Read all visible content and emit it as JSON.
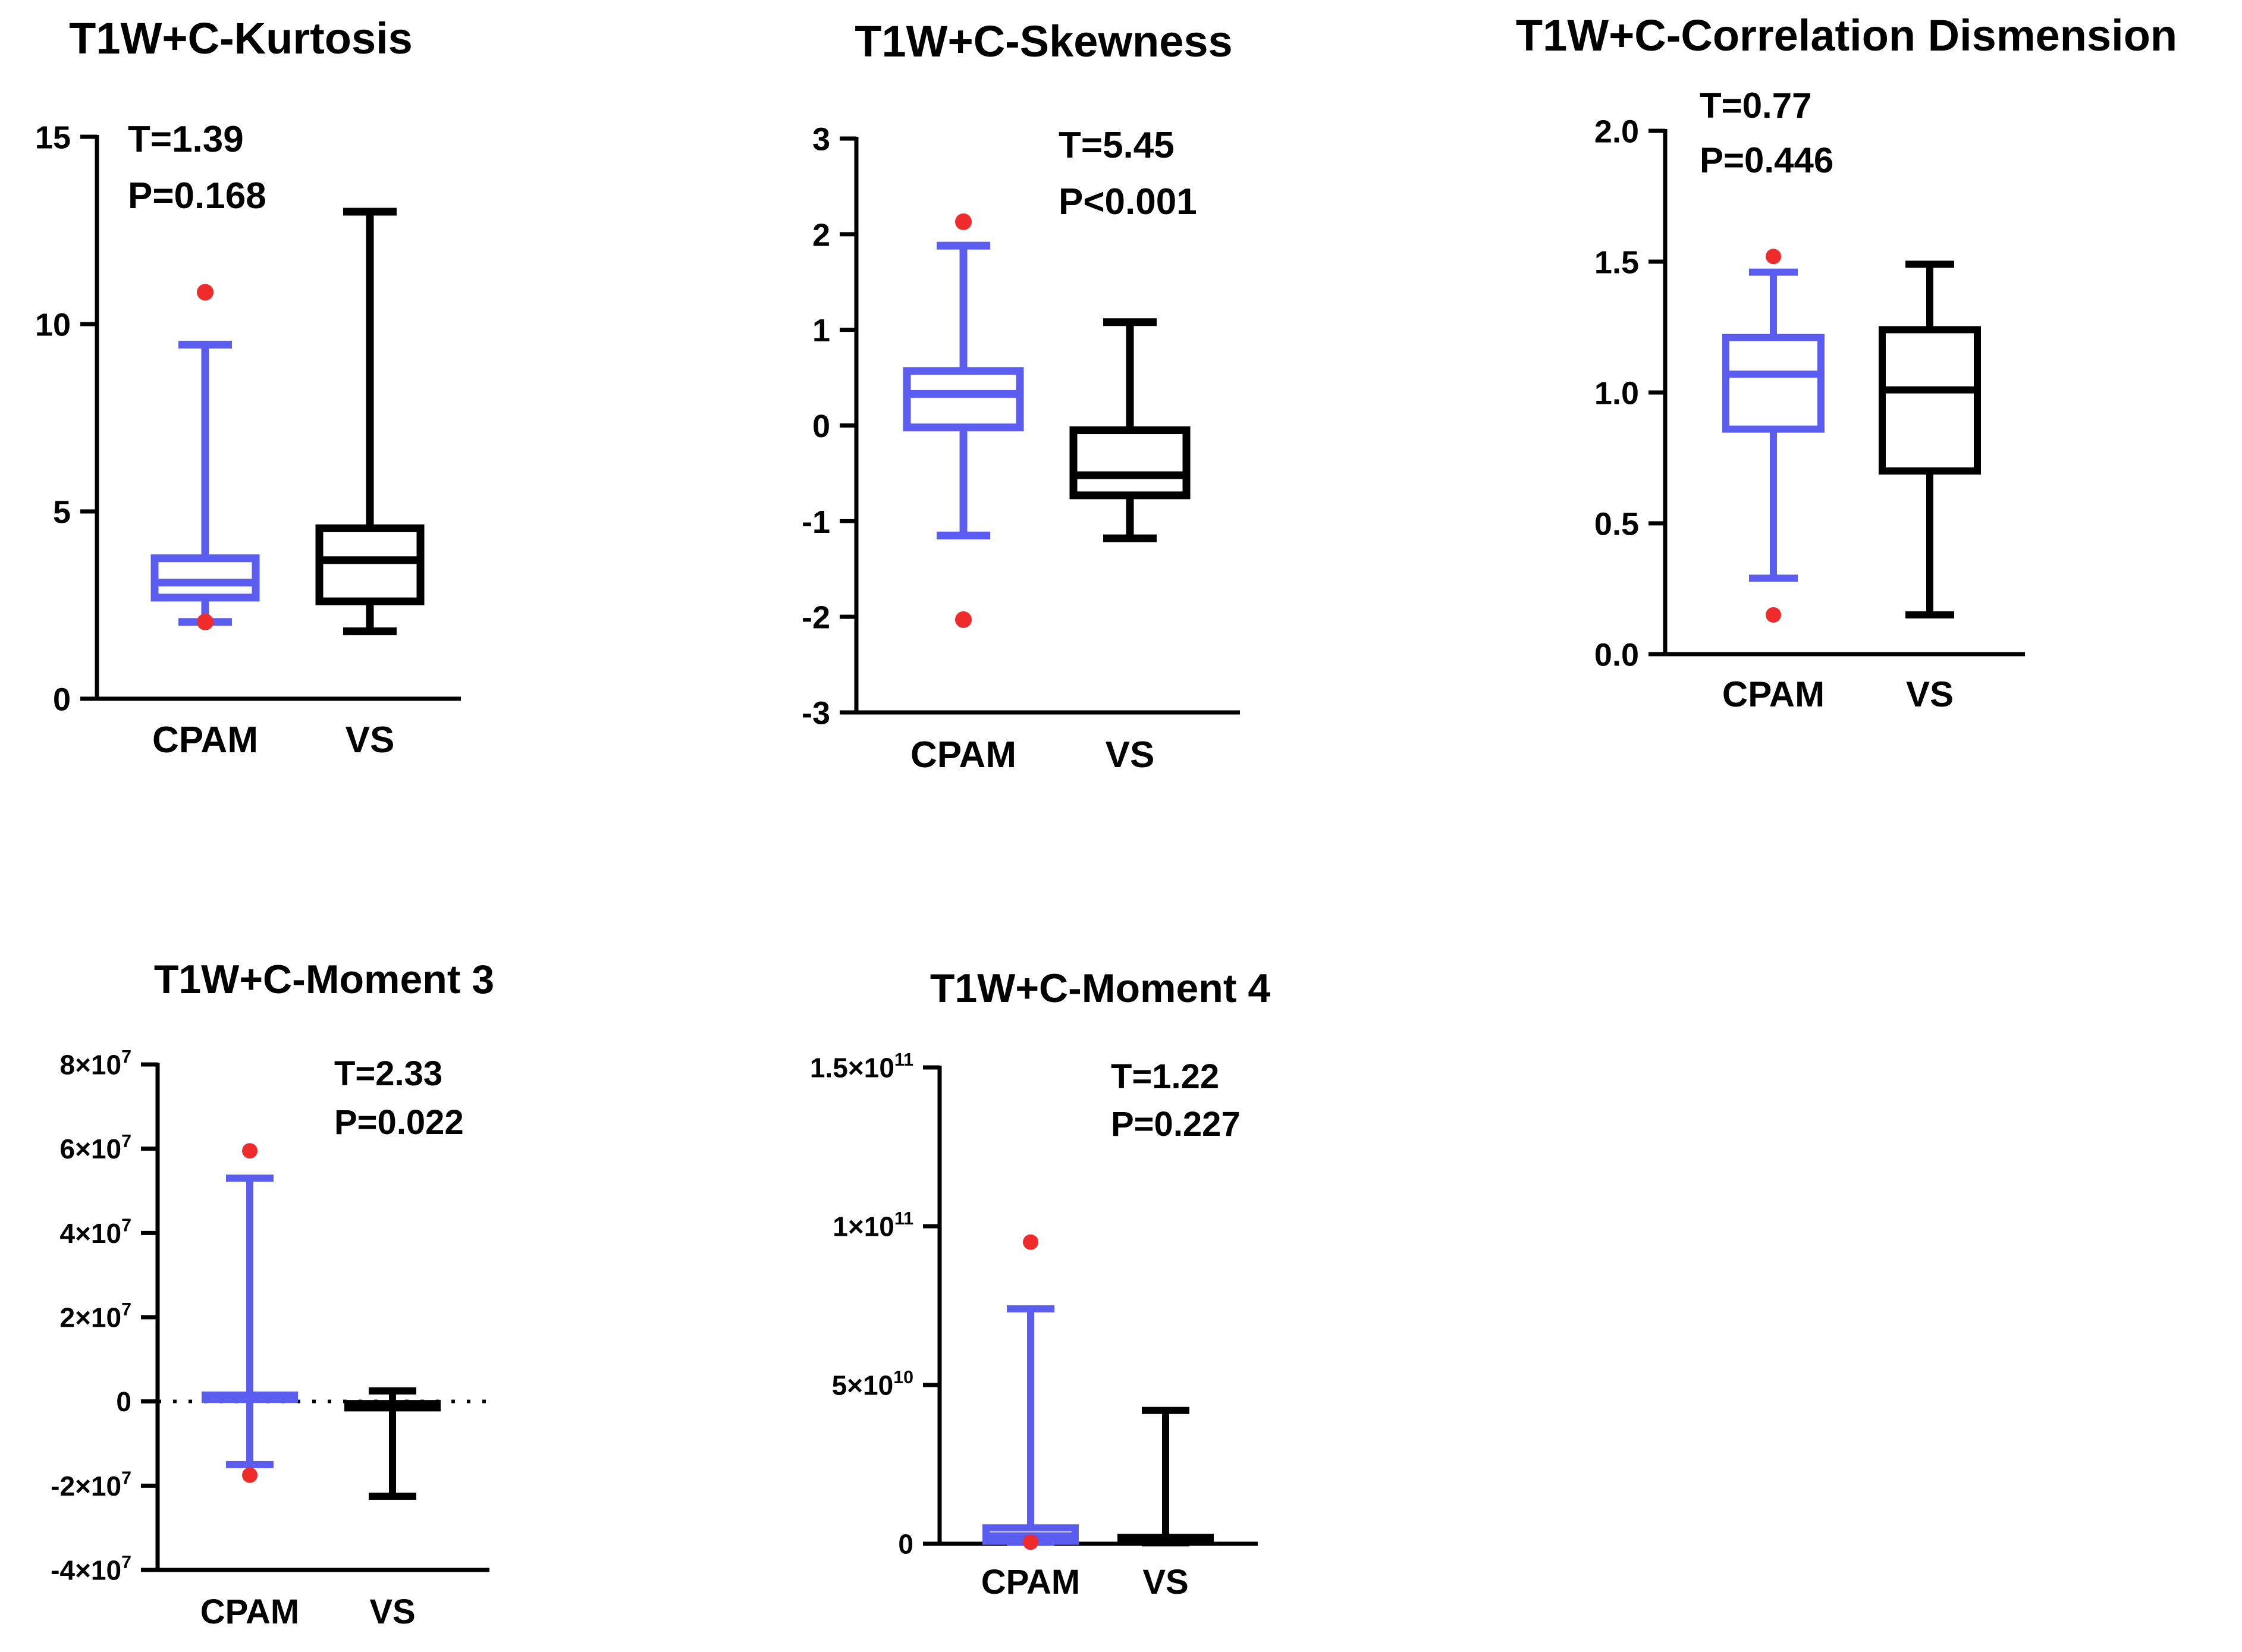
{
  "colors": {
    "cpam": "#5b5cf0",
    "vs": "#000000",
    "outlier": "#ef2b2b",
    "axis": "#000000"
  },
  "chart_data": [
    {
      "type": "box",
      "title": "T1W+C-Kurtosis",
      "categories": [
        "CPAM",
        "VS"
      ],
      "y_ticks": [
        "0",
        "5",
        "10",
        "15"
      ],
      "ylim": [
        0,
        15
      ],
      "tick_values": [
        0,
        5,
        10,
        15
      ],
      "stats": [
        "T=1.39",
        "P=0.168"
      ],
      "boxes": [
        {
          "group": "CPAM",
          "min": 2.05,
          "q1": 2.7,
          "median": 3.1,
          "q3": 3.75,
          "max": 9.45,
          "outliers": [
            10.85,
            2.05
          ]
        },
        {
          "group": "VS",
          "min": 1.8,
          "q1": 2.6,
          "median": 3.7,
          "q3": 4.55,
          "max": 13.0,
          "outliers": []
        }
      ]
    },
    {
      "type": "box",
      "title": "T1W+C-Skewness",
      "categories": [
        "CPAM",
        "VS"
      ],
      "y_ticks": [
        "-3",
        "-2",
        "-1",
        "0",
        "1",
        "2",
        "3"
      ],
      "ylim": [
        -3,
        3
      ],
      "tick_values": [
        -3,
        -2,
        -1,
        0,
        1,
        2,
        3
      ],
      "stats": [
        "T=5.45",
        "P<0.001"
      ],
      "boxes": [
        {
          "group": "CPAM",
          "min": -1.15,
          "q1": -0.02,
          "median": 0.33,
          "q3": 0.57,
          "max": 1.88,
          "outliers": [
            2.13,
            -2.03
          ]
        },
        {
          "group": "VS",
          "min": -1.18,
          "q1": -0.73,
          "median": -0.52,
          "q3": -0.05,
          "max": 1.08,
          "outliers": []
        }
      ]
    },
    {
      "type": "box",
      "title": "T1W+C-Correlation Dismension",
      "categories": [
        "CPAM",
        "VS"
      ],
      "y_ticks": [
        "0.0",
        "0.5",
        "1.0",
        "1.5",
        "2.0"
      ],
      "ylim": [
        0,
        2
      ],
      "tick_values": [
        0,
        0.5,
        1,
        1.5,
        2
      ],
      "stats": [
        "T=0.77",
        "P=0.446"
      ],
      "boxes": [
        {
          "group": "CPAM",
          "min": 0.29,
          "q1": 0.86,
          "median": 1.07,
          "q3": 1.21,
          "max": 1.46,
          "outliers": [
            1.52,
            0.15
          ]
        },
        {
          "group": "VS",
          "min": 0.15,
          "q1": 0.7,
          "median": 1.01,
          "q3": 1.24,
          "max": 1.49,
          "outliers": []
        }
      ]
    },
    {
      "type": "box",
      "title": "T1W+C-Moment 3",
      "categories": [
        "CPAM",
        "VS"
      ],
      "y_ticks": [
        [
          "-4×10",
          "7"
        ],
        [
          "-2×10",
          "7"
        ],
        [
          "0",
          ""
        ],
        [
          "2×10",
          "7"
        ],
        [
          "4×10",
          "7"
        ],
        [
          "6×10",
          "7"
        ],
        [
          "8×10",
          "7"
        ]
      ],
      "ylim": [
        -40000000,
        80000000
      ],
      "tick_values": [
        -40000000,
        -20000000,
        0,
        20000000,
        40000000,
        60000000,
        80000000
      ],
      "zero_line": true,
      "stats": [
        "T=2.33",
        "P=0.022"
      ],
      "boxes": [
        {
          "group": "CPAM",
          "min": -15000000,
          "q1": 500000,
          "median": 1000000,
          "q3": 1500000,
          "max": 53000000,
          "outliers": [
            59500000,
            -17500000
          ]
        },
        {
          "group": "VS",
          "min": -22500000,
          "q1": -1500000,
          "median": -1000000,
          "q3": -500000,
          "max": 2500000,
          "outliers": []
        }
      ]
    },
    {
      "type": "box",
      "title": "T1W+C-Moment 4",
      "categories": [
        "CPAM",
        "VS"
      ],
      "y_ticks": [
        [
          "0",
          ""
        ],
        [
          "5×10",
          "10"
        ],
        [
          "1×10",
          "11"
        ],
        [
          "1.5×10",
          "11"
        ]
      ],
      "ylim": [
        0,
        150000000000
      ],
      "tick_values": [
        0,
        50000000000,
        100000000000,
        150000000000
      ],
      "stats": [
        "T=1.22",
        "P=0.227"
      ],
      "boxes": [
        {
          "group": "CPAM",
          "min": 500000000,
          "q1": 800000000,
          "median": 2500000000,
          "q3": 5000000000,
          "max": 74000000000,
          "outliers": [
            95000000000,
            500000000
          ]
        },
        {
          "group": "VS",
          "min": 300000000,
          "q1": 800000000,
          "median": 1500000000,
          "q3": 2000000000,
          "max": 42000000000,
          "outliers": []
        }
      ]
    }
  ]
}
